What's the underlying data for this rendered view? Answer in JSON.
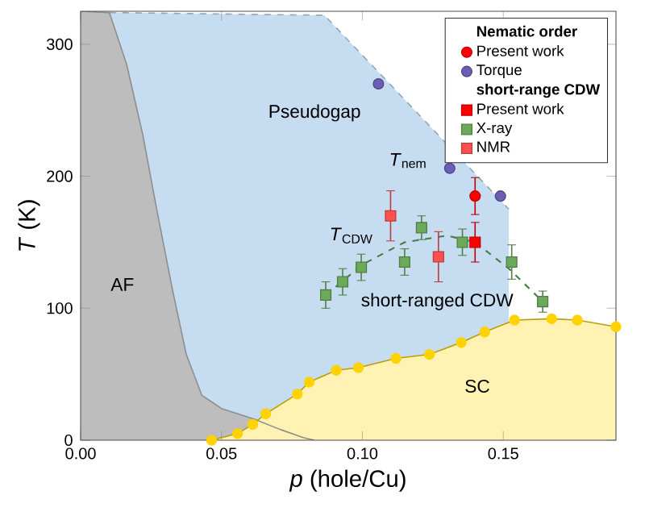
{
  "chart_data": {
    "type": "scatter",
    "xlabel": "*p* (hole/Cu)",
    "ylabel": "*T* (K)",
    "legend_title": "Nematic order",
    "xlim": [
      0,
      0.19
    ],
    "ylim": [
      0,
      325
    ],
    "xticks": [
      {
        "value": 0,
        "label": "0.00"
      },
      {
        "value": 0.05,
        "label": "0.05"
      },
      {
        "value": 0.1,
        "label": "0.10"
      },
      {
        "value": 0.15,
        "label": "0.15"
      }
    ],
    "yticks": [
      0,
      100,
      200,
      300
    ],
    "grid": false,
    "legend": "top right",
    "annotations": [
      "short-range CDW",
      "AF",
      "Pseudogap",
      "SC",
      "short-ranged CDW",
      "*T*$_{nem}$",
      "*T*$_{CDW}$"
    ],
    "series": [
      {
        "type": "area",
        "color": "#c6dcf0",
        "line_style": "dashed",
        "x": [
          0.0102,
          0.0865,
          0.152
        ],
        "values": [
          324,
          322,
          175
        ]
      },
      {
        "type": "area",
        "color": "#bdbdbd",
        "x": [
          0,
          0.0102,
          0.0163,
          0.022,
          0.027,
          0.0326,
          0.0375,
          0.043,
          0.05,
          0.0615,
          0.071,
          0.079,
          0.083
        ],
        "values": [
          325,
          324,
          285,
          232,
          175,
          114,
          65,
          34,
          24,
          16,
          8,
          2,
          0
        ]
      },
      {
        "type": "area",
        "color": "#ffd200",
        "marker": "circle",
        "x": [
          0.0465,
          0.0557,
          0.0611,
          0.0657,
          0.0769,
          0.0811,
          0.0907,
          0.0986,
          0.1119,
          0.1238,
          0.1351,
          0.1434,
          0.154,
          0.1672,
          0.1763,
          0.19
        ],
        "values": [
          0,
          5,
          12,
          20,
          35,
          44,
          53,
          55,
          62,
          65,
          74,
          82,
          91,
          92,
          91,
          86
        ]
      },
      {
        "type": "line",
        "color": "#4a7a4a",
        "line_style": "dashed",
        "x": [
          0.087,
          0.1,
          0.115,
          0.13,
          0.14,
          0.152,
          0.164
        ],
        "values": [
          110,
          133,
          150,
          155,
          150,
          130,
          105
        ]
      },
      {
        "name": "Present work",
        "color": "#ff0000",
        "marker": "circle",
        "x": [
          0.14
        ],
        "values": [
          185
        ],
        "errors": [
          14
        ]
      },
      {
        "name": "Torque",
        "color": "#6b5fb5",
        "marker": "circle",
        "x": [
          0.1057,
          0.131,
          0.149
        ],
        "values": [
          270,
          206,
          185
        ]
      },
      {
        "name": "Present work",
        "color": "#ff0000",
        "marker": "square",
        "x": [
          0.14
        ],
        "values": [
          150
        ],
        "errors": [
          15
        ]
      },
      {
        "name": "X-ray",
        "color": "#6aaa5a",
        "marker": "square",
        "x": [
          0.087,
          0.093,
          0.0996,
          0.115,
          0.121,
          0.1355,
          0.153,
          0.164
        ],
        "values": [
          110,
          120,
          131,
          135,
          161,
          150,
          135,
          105
        ],
        "errors": [
          10,
          10,
          10,
          10,
          9,
          10,
          13,
          8
        ]
      },
      {
        "name": "NMR",
        "color": "#ff5050",
        "marker": "square",
        "x": [
          0.11,
          0.127
        ],
        "values": [
          170,
          139
        ],
        "errors": [
          19,
          19
        ]
      }
    ]
  }
}
